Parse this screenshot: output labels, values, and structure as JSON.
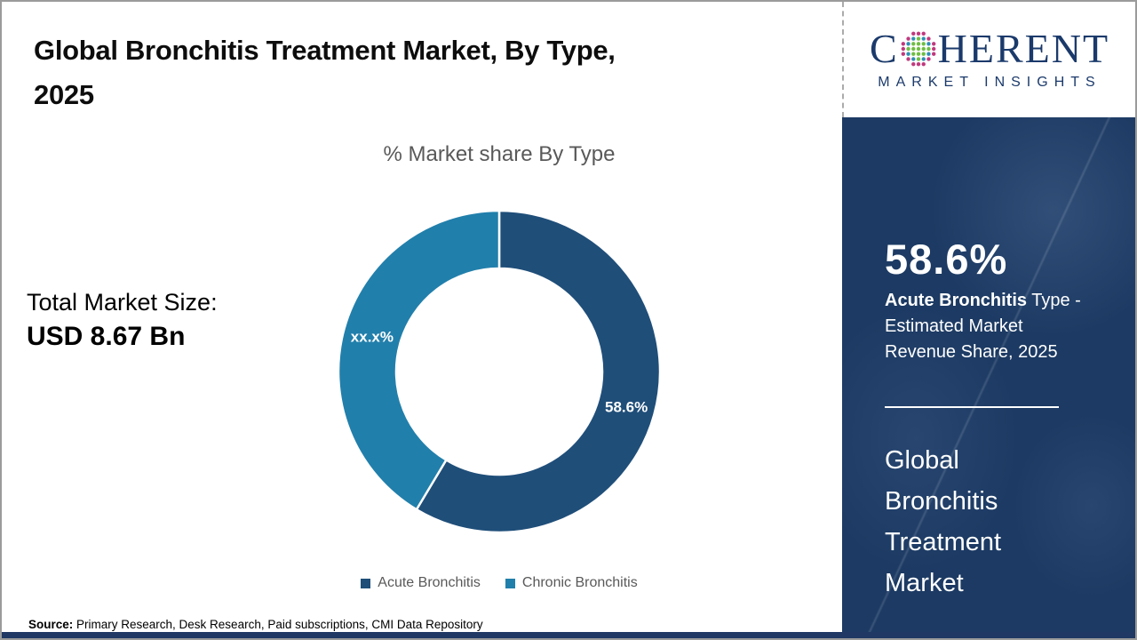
{
  "header": {
    "title_line1": "Global Bronchitis Treatment Market, By Type,",
    "title_line2": "2025"
  },
  "logo": {
    "word_start": "C",
    "word_end": "HERENT",
    "subtitle": "MARKET INSIGHTS",
    "brand_color": "#1B3A6B",
    "globe_colors": {
      "center": "#6FBE44",
      "inner_ring": "#2E8FB5",
      "outer_ring": "#C0397E"
    }
  },
  "left_panel": {
    "total_label": "Total Market Size:",
    "total_value": "USD 8.67 Bn"
  },
  "chart_data": {
    "type": "pie",
    "subtype": "donut",
    "title": "% Market share By Type",
    "categories": [
      "Acute Bronchitis",
      "Chronic Bronchitis"
    ],
    "values": [
      58.6,
      41.4
    ],
    "slice_labels": [
      "58.6%",
      "xx.x%"
    ],
    "colors": [
      "#1F4E79",
      "#217FAB"
    ],
    "legend_position": "bottom",
    "start_angle_deg": 0,
    "direction": "clockwise"
  },
  "sidebar": {
    "stat_value": "58.6%",
    "stat_bold": "Acute Bronchitis",
    "stat_rest": " Type - Estimated Market Revenue Share, 2025",
    "panel_title": "Global Bronchitis Treatment Market",
    "panel_color": "#1C3A63"
  },
  "footer": {
    "source_label": "Source:",
    "source_text": " Primary Research, Desk Research, Paid subscriptions, CMI Data Repository",
    "strip_color": "#1F3864"
  }
}
